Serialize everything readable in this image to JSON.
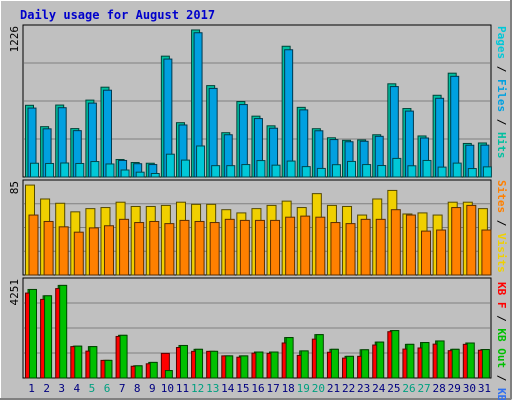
{
  "title": "Daily usage for August 2017",
  "colors": {
    "background": "#C0C0C0",
    "title": "#0000CC",
    "hits": "#00C0A0",
    "files": "#00A0E0",
    "pages": "#00C8D8",
    "visits": "#F0D000",
    "sites": "#FF8000",
    "kb_in": "#3070F0",
    "kb_out": "#00C000",
    "kb_f": "#FF0000",
    "weekend_day": "#00A080",
    "weekday": "#000080"
  },
  "chart_data": [
    {
      "type": "bar",
      "panel": "hits-files-pages",
      "ymax_label": "1226",
      "ylim": [
        0,
        1226
      ],
      "legend": {
        "pages": "Pages",
        "files": "Files",
        "hits": "Hits",
        "sep": " / "
      },
      "categories": [
        "1",
        "2",
        "3",
        "4",
        "5",
        "6",
        "7",
        "8",
        "9",
        "10",
        "11",
        "12",
        "13",
        "14",
        "15",
        "16",
        "17",
        "18",
        "19",
        "20",
        "21",
        "22",
        "23",
        "24",
        "25",
        "26",
        "27",
        "28",
        "29",
        "30",
        "31"
      ],
      "series": [
        {
          "name": "Hits",
          "values": [
            594,
            417,
            596,
            401,
            637,
            744,
            145,
            120,
            114,
            1001,
            450,
            1218,
            757,
            367,
            625,
            504,
            424,
            1083,
            577,
            400,
            325,
            304,
            307,
            350,
            772,
            567,
            340,
            677,
            860,
            278,
            282
          ]
        },
        {
          "name": "Files",
          "values": [
            571,
            399,
            574,
            384,
            612,
            719,
            137,
            110,
            103,
            977,
            431,
            1195,
            734,
            350,
            600,
            484,
            404,
            1054,
            556,
            383,
            310,
            292,
            296,
            337,
            749,
            546,
            323,
            652,
            834,
            263,
            264
          ]
        },
        {
          "name": "Pages",
          "values": [
            114,
            112,
            116,
            112,
            128,
            108,
            58,
            40,
            29,
            189,
            140,
            257,
            94,
            94,
            103,
            136,
            98,
            132,
            86,
            71,
            102,
            129,
            103,
            95,
            154,
            93,
            137,
            82,
            115,
            70,
            84
          ]
        }
      ]
    },
    {
      "type": "bar",
      "panel": "visits-sites",
      "ymax_label": "85",
      "ylim": [
        0,
        85
      ],
      "legend": {
        "sites": "Sites",
        "visits": "Visits",
        "sep": " / "
      },
      "categories": [
        "1",
        "2",
        "3",
        "4",
        "5",
        "6",
        "7",
        "8",
        "9",
        "10",
        "11",
        "12",
        "13",
        "14",
        "15",
        "16",
        "17",
        "18",
        "19",
        "20",
        "21",
        "22",
        "23",
        "24",
        "25",
        "26",
        "27",
        "28",
        "29",
        "30",
        "31"
      ],
      "series": [
        {
          "name": "Visits",
          "values": [
            84,
            71,
            67,
            59,
            62,
            63,
            68,
            64,
            64,
            65,
            68,
            66,
            66,
            61,
            58,
            62,
            65,
            69,
            63,
            76,
            65,
            64,
            56,
            71,
            79,
            57,
            58,
            56,
            68,
            68,
            62
          ]
        },
        {
          "name": "Sites",
          "values": [
            56,
            50,
            45,
            40,
            44,
            46,
            52,
            49,
            50,
            48,
            51,
            50,
            49,
            52,
            51,
            51,
            51,
            54,
            55,
            54,
            49,
            48,
            52,
            52,
            61,
            56,
            41,
            42,
            63,
            65,
            42
          ]
        }
      ]
    },
    {
      "type": "bar",
      "panel": "kbytes",
      "ymax_label": "4251",
      "ylim": [
        0,
        4251
      ],
      "legend": {
        "f": "KB F",
        "out": "KB Out",
        "in": "KB In",
        "sep": " / "
      },
      "categories": [
        "1",
        "2",
        "3",
        "4",
        "5",
        "6",
        "7",
        "8",
        "9",
        "10",
        "11",
        "12",
        "13",
        "14",
        "15",
        "16",
        "17",
        "18",
        "19",
        "20",
        "21",
        "22",
        "23",
        "24",
        "25",
        "26",
        "27",
        "28",
        "29",
        "30",
        "31"
      ],
      "series": [
        {
          "name": "KB In",
          "values": [
            0,
            0,
            0,
            0,
            0,
            0,
            0,
            0,
            0,
            0,
            0,
            0,
            0,
            0,
            0,
            0,
            0,
            0,
            0,
            0,
            0,
            0,
            0,
            0,
            0,
            0,
            0,
            0,
            0,
            0,
            0
          ]
        },
        {
          "name": "KB Out",
          "values": [
            3920,
            3640,
            4100,
            1410,
            1390,
            780,
            1890,
            540,
            690,
            330,
            1440,
            1270,
            1180,
            979,
            979,
            1150,
            1150,
            1790,
            1200,
            1920,
            1270,
            959,
            1250,
            1590,
            2100,
            1490,
            1570,
            1640,
            1270,
            1550,
            1260
          ]
        },
        {
          "name": "KB F",
          "values": [
            3760,
            3480,
            3960,
            1390,
            1190,
            780,
            1840,
            520,
            630,
            1090,
            1350,
            1180,
            1180,
            979,
            920,
            1100,
            1090,
            1550,
            1000,
            1720,
            1140,
            880,
            960,
            1460,
            2050,
            1280,
            1330,
            1500,
            1210,
            1490,
            1230
          ]
        }
      ]
    }
  ],
  "x_axis": {
    "labels": [
      "1",
      "2",
      "3",
      "4",
      "5",
      "6",
      "7",
      "8",
      "9",
      "10",
      "11",
      "12",
      "13",
      "14",
      "15",
      "16",
      "17",
      "18",
      "19",
      "20",
      "21",
      "22",
      "23",
      "24",
      "25",
      "26",
      "27",
      "28",
      "29",
      "30",
      "31"
    ],
    "weekend": [
      5,
      6,
      12,
      13,
      19,
      20,
      26,
      27
    ]
  }
}
